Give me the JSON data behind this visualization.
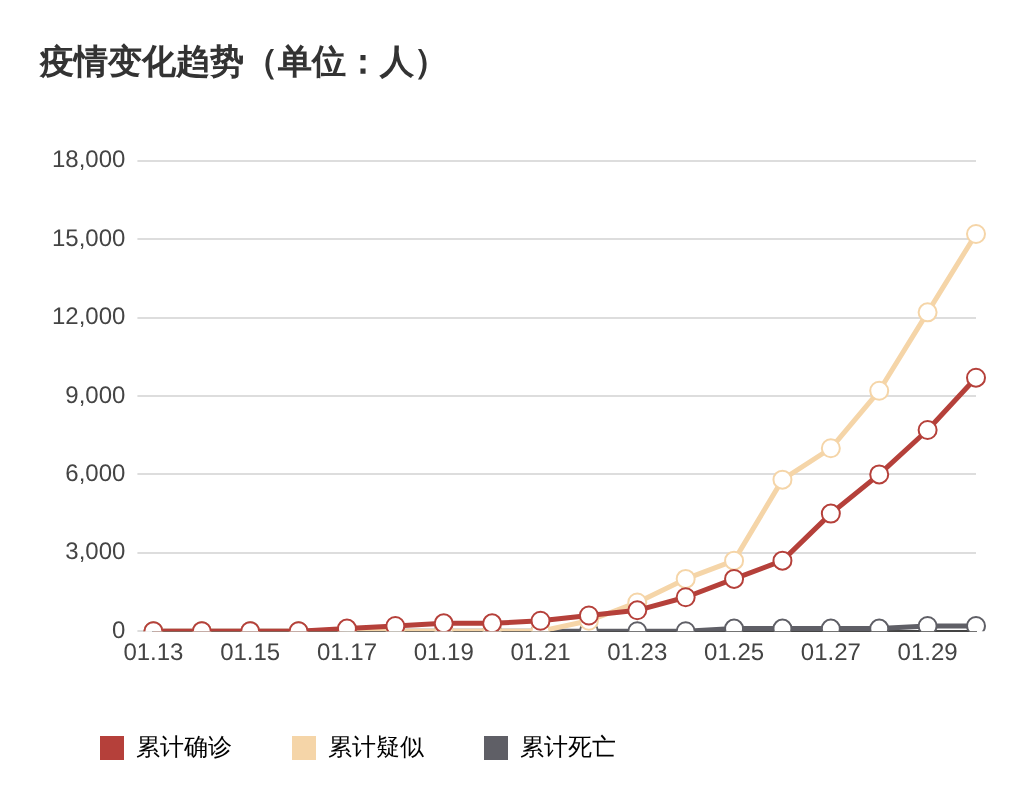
{
  "chart_data": {
    "type": "line",
    "title": "疫情变化趋势（单位：人）",
    "categories": [
      "01.13",
      null,
      "01.15",
      null,
      "01.17",
      null,
      "01.19",
      null,
      "01.21",
      null,
      "01.23",
      null,
      "01.25",
      null,
      "01.27",
      null,
      "01.29",
      null
    ],
    "series": [
      {
        "name": "累计确诊",
        "color": "#b5403a",
        "values": [
          0,
          0,
          0,
          0,
          100,
          200,
          300,
          300,
          400,
          600,
          800,
          1300,
          2000,
          2700,
          4500,
          6000,
          7700,
          9700
        ]
      },
      {
        "name": "累计疑似",
        "color": "#f5d5a8",
        "values": [
          0,
          0,
          0,
          0,
          0,
          0,
          0,
          0,
          0,
          400,
          1100,
          2000,
          2700,
          5800,
          7000,
          9200,
          12200,
          15200
        ]
      },
      {
        "name": "累计死亡",
        "color": "#5f5f66",
        "values": [
          0,
          0,
          0,
          0,
          0,
          0,
          0,
          0,
          0,
          0,
          0,
          0,
          100,
          100,
          100,
          100,
          200,
          200
        ]
      }
    ],
    "ylim": [
      0,
      18000
    ],
    "yticks": [
      {
        "value": 0,
        "label": "0"
      },
      {
        "value": 3000,
        "label": "3,000"
      },
      {
        "value": 6000,
        "label": "6,000"
      },
      {
        "value": 9000,
        "label": "9,000"
      },
      {
        "value": 12000,
        "label": "12,000"
      },
      {
        "value": 15000,
        "label": "15,000"
      },
      {
        "value": 18000,
        "label": "18,000"
      }
    ],
    "grid": "y",
    "legend": "bottom",
    "marker": "circle",
    "line_style": "solid"
  }
}
